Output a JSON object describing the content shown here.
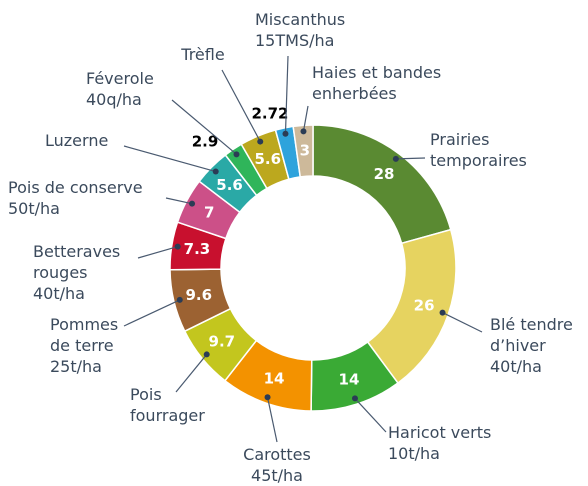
{
  "chart_data": {
    "type": "donut",
    "categories": [
      [
        "Prairies",
        "temporaires"
      ],
      [
        "Blé tendre",
        "d’hiver"
      ],
      [
        "Haricot verts"
      ],
      [
        "Carottes"
      ],
      [
        "Pois",
        "fourrager"
      ],
      [
        "Pommes",
        "de terre"
      ],
      [
        "Betteraves",
        "rouges"
      ],
      [
        "Pois de conserve"
      ],
      [
        "Luzerne"
      ],
      [
        "Féverole"
      ],
      [
        "Trèfle"
      ],
      [
        "Miscanthus"
      ],
      [
        "Haies et bandes",
        "enherbées"
      ]
    ],
    "yields": [
      null,
      "40t/ha",
      "10t/ha",
      "45t/ha",
      null,
      "25t/ha",
      "40t/ha",
      "50t/ha",
      null,
      "40q/ha",
      null,
      "15TMS/ha",
      null
    ],
    "values": [
      28,
      26,
      14,
      14,
      9.7,
      9.6,
      7.3,
      7,
      5.6,
      2.9,
      5.6,
      2.72,
      3
    ],
    "colors": [
      "#5a8a32",
      "#e6d360",
      "#3aaa35",
      "#f39200",
      "#c3c61e",
      "#9c6232",
      "#c8102e",
      "#cc5088",
      "#2aa9a6",
      "#2fb55a",
      "#bca81e",
      "#2ea3dc",
      "#cdb99a"
    ]
  }
}
